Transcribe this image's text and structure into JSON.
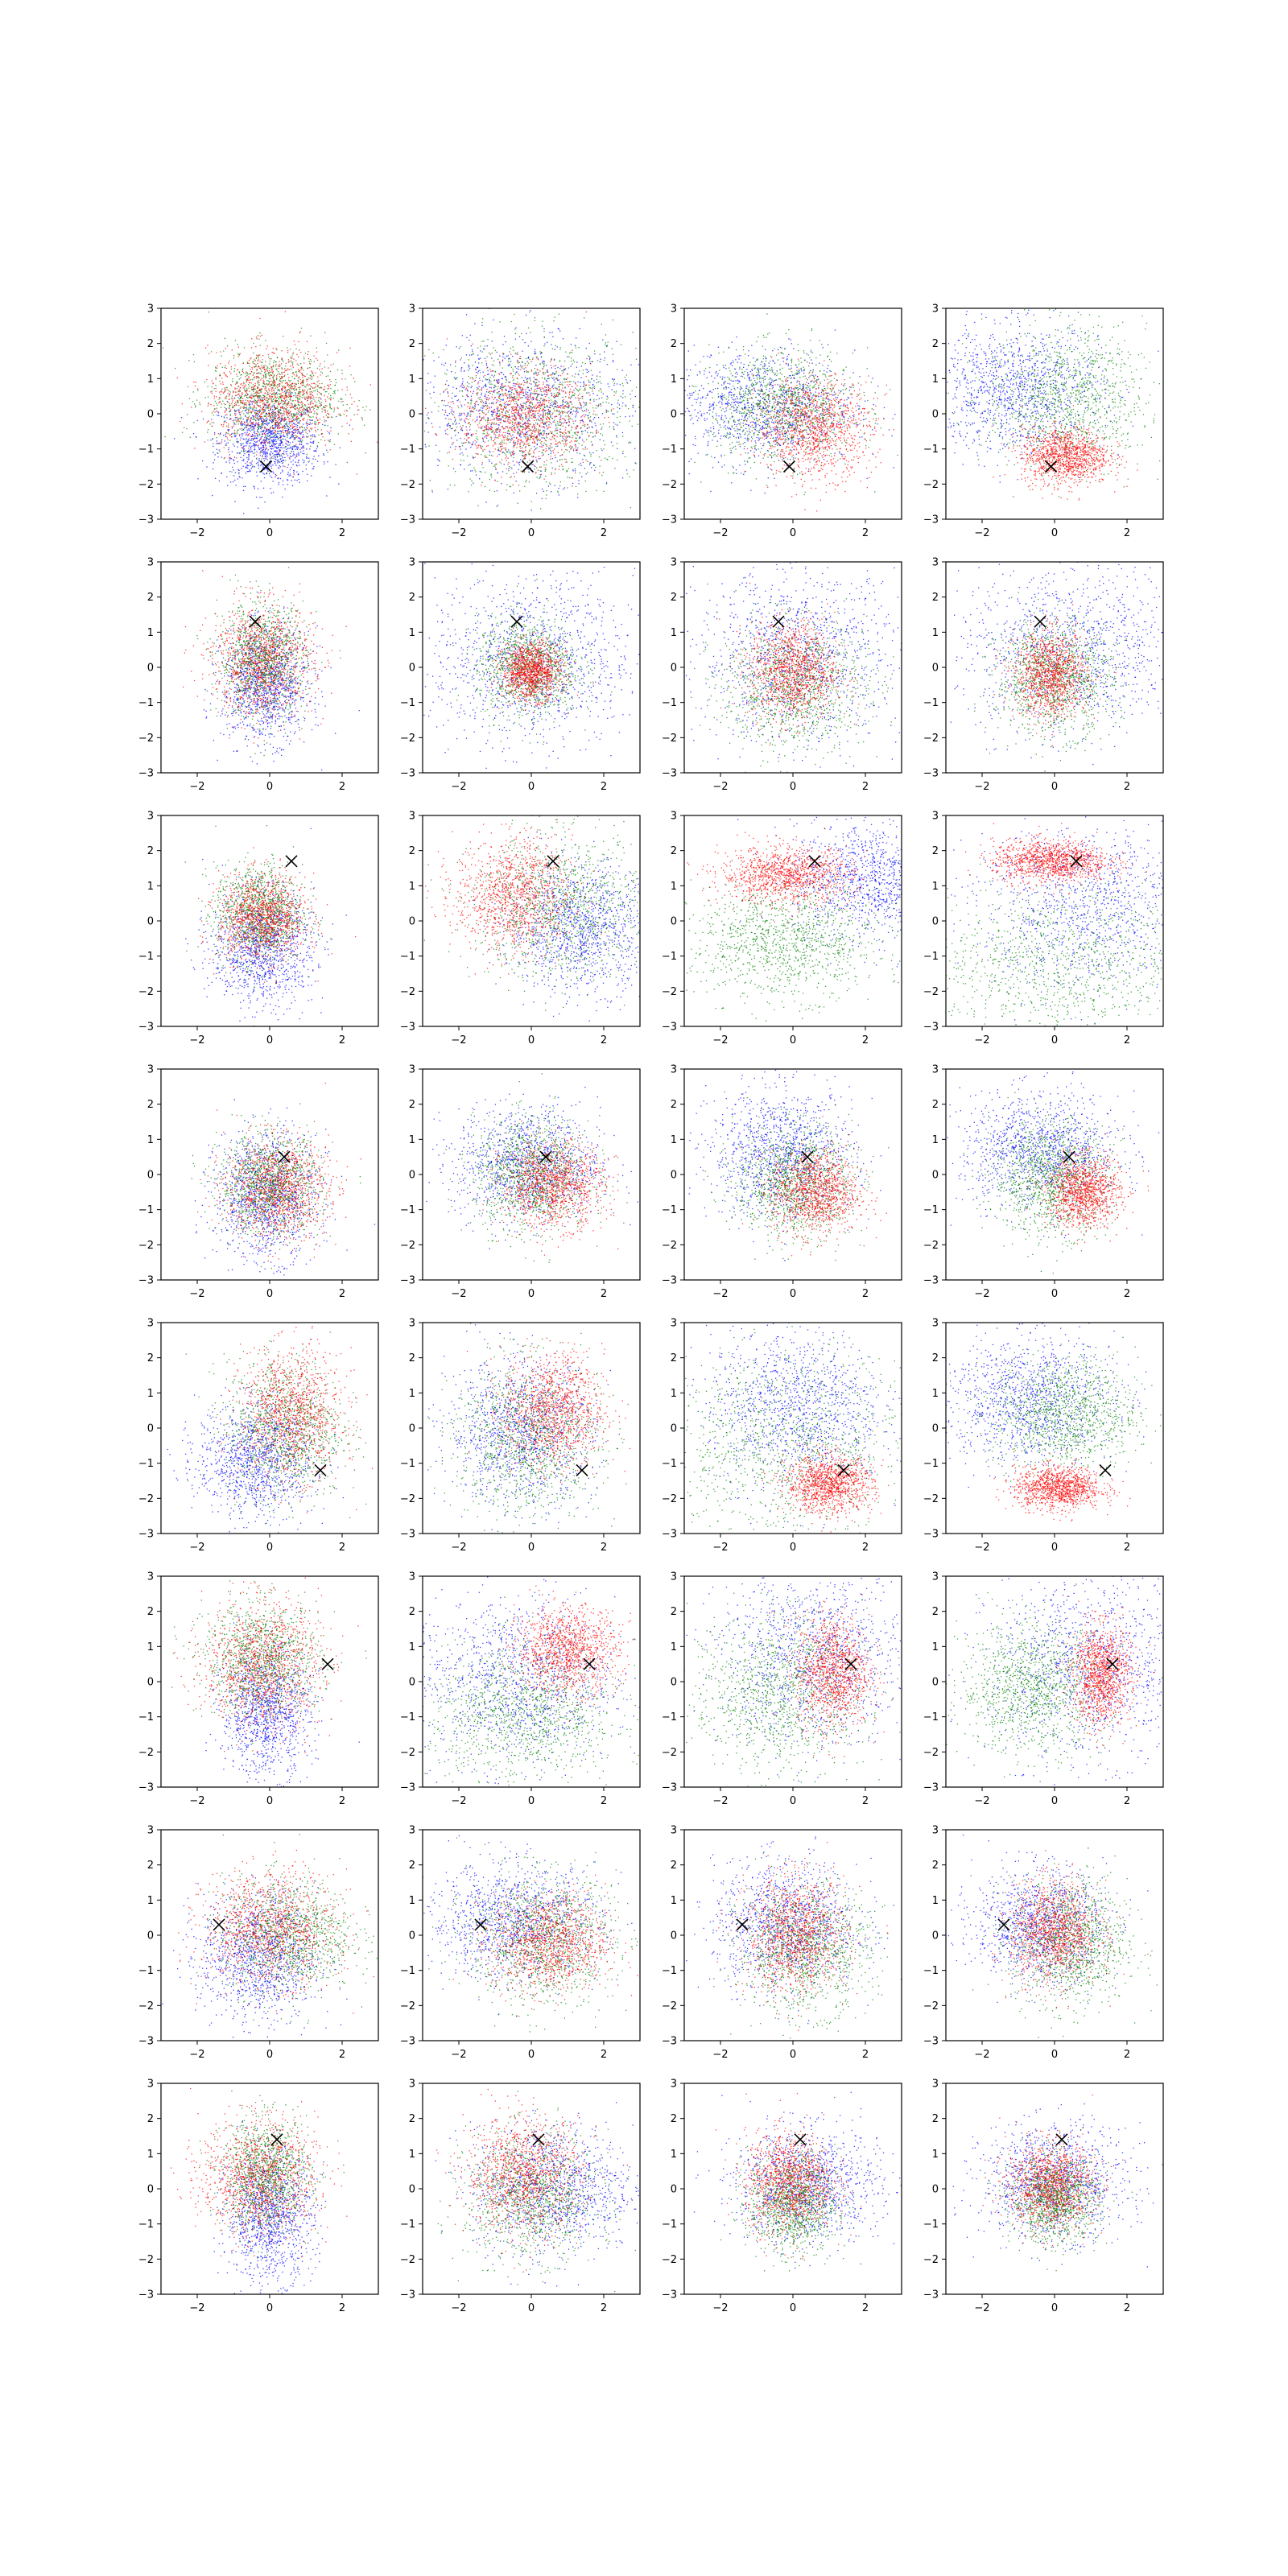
{
  "figure": {
    "rows": 8,
    "cols": 4,
    "background": "#ffffff"
  },
  "chart_data": {
    "type": "scatter",
    "title": "",
    "xlabel": "",
    "ylabel": "",
    "xlim": [
      -3,
      3
    ],
    "ylim": [
      -3,
      3
    ],
    "xticks": [
      "−2",
      "0",
      "2"
    ],
    "yticks": [
      "−3",
      "−2",
      "−1",
      "0",
      "1",
      "2",
      "3"
    ],
    "grid": false,
    "legend": "none",
    "series_colors": {
      "blue": "#0000ff",
      "green": "#008000",
      "red": "#ff0000"
    },
    "marker_color": "#000000",
    "marker_symbol": "×",
    "rows": [
      {
        "marker": [
          -0.1,
          -1.5
        ],
        "panels": [
          {
            "blue": [
              0.0,
              -0.8,
              0.7,
              0.6
            ],
            "green": [
              0.1,
              0.4,
              0.9,
              0.7
            ],
            "red": [
              0.1,
              0.4,
              0.9,
              0.7
            ]
          },
          {
            "blue": [
              -0.3,
              0.2,
              1.5,
              1.0
            ],
            "green": [
              0.2,
              0.0,
              1.4,
              1.1
            ],
            "red": [
              -0.2,
              -0.1,
              0.9,
              0.7
            ]
          },
          {
            "blue": [
              -0.9,
              0.2,
              1.3,
              0.8
            ],
            "green": [
              -0.3,
              0.2,
              1.0,
              0.8
            ],
            "red": [
              0.6,
              -0.4,
              0.8,
              0.7
            ]
          },
          {
            "blue": [
              -1.1,
              0.7,
              1.2,
              0.9
            ],
            "green": [
              0.3,
              0.4,
              1.1,
              1.0
            ],
            "red": [
              0.3,
              -1.2,
              0.6,
              0.4
            ]
          }
        ]
      },
      {
        "marker": [
          -0.4,
          1.3
        ],
        "panels": [
          {
            "blue": [
              -0.1,
              -0.5,
              0.6,
              0.8
            ],
            "green": [
              -0.2,
              0.2,
              0.6,
              0.8
            ],
            "red": [
              -0.2,
              0.2,
              0.7,
              0.8
            ]
          },
          {
            "blue": [
              0.0,
              0.2,
              1.4,
              1.2
            ],
            "green": [
              -0.1,
              0.0,
              0.7,
              0.7
            ],
            "red": [
              0.0,
              -0.1,
              0.4,
              0.4
            ]
          },
          {
            "blue": [
              0.2,
              0.3,
              1.4,
              1.2
            ],
            "green": [
              0.0,
              -0.5,
              1.0,
              0.9
            ],
            "red": [
              0.0,
              -0.1,
              0.6,
              0.7
            ]
          },
          {
            "blue": [
              0.5,
              0.5,
              1.6,
              1.2
            ],
            "green": [
              0.0,
              -0.3,
              0.8,
              0.8
            ],
            "red": [
              -0.1,
              -0.2,
              0.5,
              0.6
            ]
          }
        ]
      },
      {
        "marker": [
          0.6,
          1.7
        ],
        "panels": [
          {
            "blue": [
              -0.2,
              -0.8,
              0.7,
              0.8
            ],
            "green": [
              -0.3,
              0.2,
              0.6,
              0.7
            ],
            "red": [
              -0.2,
              0.1,
              0.6,
              0.6
            ]
          },
          {
            "blue": [
              1.4,
              -0.2,
              1.0,
              0.9
            ],
            "green": [
              0.8,
              0.4,
              1.2,
              1.0
            ],
            "red": [
              -0.5,
              0.7,
              0.8,
              0.8
            ]
          },
          {
            "blue": [
              2.2,
              1.2,
              1.1,
              0.8
            ],
            "green": [
              -0.2,
              -0.6,
              1.3,
              0.8
            ],
            "red": [
              -0.2,
              1.3,
              0.9,
              0.4
            ]
          },
          {
            "blue": [
              1.0,
              0.5,
              1.6,
              1.2
            ],
            "green": [
              0.0,
              -1.2,
              2.0,
              1.1
            ],
            "red": [
              -0.1,
              1.7,
              0.8,
              0.3
            ]
          }
        ]
      },
      {
        "marker": [
          0.4,
          0.5
        ],
        "panels": [
          {
            "blue": [
              -0.1,
              -0.6,
              0.7,
              0.9
            ],
            "green": [
              0.0,
              -0.3,
              0.7,
              0.7
            ],
            "red": [
              0.2,
              -0.4,
              0.7,
              0.7
            ]
          },
          {
            "blue": [
              -0.1,
              0.3,
              1.0,
              0.8
            ],
            "green": [
              0.0,
              0.0,
              0.8,
              0.8
            ],
            "red": [
              0.6,
              -0.3,
              0.7,
              0.6
            ]
          },
          {
            "blue": [
              -0.3,
              0.6,
              1.0,
              0.9
            ],
            "green": [
              0.0,
              -0.2,
              0.8,
              0.8
            ],
            "red": [
              0.6,
              -0.5,
              0.6,
              0.6
            ]
          },
          {
            "blue": [
              -0.4,
              0.7,
              1.1,
              0.8
            ],
            "green": [
              -0.1,
              -0.1,
              0.8,
              0.8
            ],
            "red": [
              0.8,
              -0.5,
              0.5,
              0.5
            ]
          }
        ]
      },
      {
        "marker": [
          1.4,
          -1.2
        ],
        "panels": [
          {
            "blue": [
              -0.4,
              -0.9,
              0.8,
              0.8
            ],
            "green": [
              0.4,
              0.0,
              0.8,
              1.0
            ],
            "red": [
              0.6,
              0.4,
              0.7,
              0.9
            ]
          },
          {
            "blue": [
              -0.3,
              -0.1,
              1.0,
              1.0
            ],
            "green": [
              -0.1,
              -0.3,
              1.0,
              1.1
            ],
            "red": [
              0.6,
              0.5,
              0.7,
              0.8
            ]
          },
          {
            "blue": [
              0.1,
              0.6,
              1.2,
              1.1
            ],
            "green": [
              -0.2,
              -0.5,
              1.7,
              1.3
            ],
            "red": [
              1.0,
              -1.6,
              0.6,
              0.4
            ]
          },
          {
            "blue": [
              -0.8,
              0.8,
              1.2,
              0.9
            ],
            "green": [
              0.3,
              0.4,
              1.0,
              0.8
            ],
            "red": [
              0.1,
              -1.7,
              0.6,
              0.3
            ]
          }
        ]
      },
      {
        "marker": [
          1.6,
          0.5
        ],
        "panels": [
          {
            "blue": [
              -0.1,
              -0.9,
              0.6,
              0.9
            ],
            "green": [
              -0.2,
              0.6,
              0.8,
              0.8
            ],
            "red": [
              -0.2,
              0.5,
              0.8,
              0.9
            ]
          },
          {
            "blue": [
              -0.5,
              0.0,
              1.4,
              1.2
            ],
            "green": [
              -0.2,
              -0.9,
              1.3,
              1.0
            ],
            "red": [
              1.0,
              0.9,
              0.7,
              0.6
            ]
          },
          {
            "blue": [
              0.6,
              0.7,
              1.3,
              1.2
            ],
            "green": [
              -0.4,
              -0.3,
              1.2,
              1.1
            ],
            "red": [
              1.1,
              0.3,
              0.5,
              0.8
            ]
          },
          {
            "blue": [
              1.0,
              0.4,
              1.4,
              1.3
            ],
            "green": [
              -0.6,
              -0.2,
              1.0,
              0.9
            ],
            "red": [
              1.3,
              0.2,
              0.4,
              0.7
            ]
          }
        ]
      },
      {
        "marker": [
          -1.4,
          0.3
        ],
        "panels": [
          {
            "blue": [
              -0.3,
              -0.6,
              0.8,
              0.9
            ],
            "green": [
              0.5,
              0.0,
              0.9,
              0.8
            ],
            "red": [
              0.0,
              0.2,
              0.9,
              0.8
            ]
          },
          {
            "blue": [
              -0.5,
              0.4,
              1.2,
              0.8
            ],
            "green": [
              0.3,
              -0.1,
              1.0,
              0.9
            ],
            "red": [
              0.5,
              -0.2,
              0.8,
              0.7
            ]
          },
          {
            "blue": [
              -0.2,
              0.3,
              1.0,
              0.9
            ],
            "green": [
              0.3,
              -0.4,
              0.9,
              0.9
            ],
            "red": [
              0.1,
              0.0,
              0.7,
              0.8
            ]
          },
          {
            "blue": [
              -0.4,
              0.3,
              0.9,
              0.8
            ],
            "green": [
              0.4,
              -0.2,
              0.8,
              0.9
            ],
            "red": [
              0.0,
              0.1,
              0.6,
              0.7
            ]
          }
        ]
      },
      {
        "marker": [
          0.2,
          1.4
        ],
        "panels": [
          {
            "blue": [
              0.0,
              -0.8,
              0.6,
              0.9
            ],
            "green": [
              -0.1,
              0.4,
              0.6,
              0.8
            ],
            "red": [
              -0.3,
              0.3,
              0.8,
              0.8
            ]
          },
          {
            "blue": [
              0.6,
              0.0,
              1.1,
              0.9
            ],
            "green": [
              0.0,
              -0.2,
              0.9,
              0.9
            ],
            "red": [
              -0.2,
              0.4,
              0.8,
              0.8
            ]
          },
          {
            "blue": [
              0.4,
              0.1,
              1.0,
              0.8
            ],
            "green": [
              0.0,
              -0.4,
              0.6,
              0.7
            ],
            "red": [
              -0.1,
              0.2,
              0.6,
              0.7
            ]
          },
          {
            "blue": [
              0.0,
              0.2,
              1.0,
              0.8
            ],
            "green": [
              0.0,
              -0.3,
              0.6,
              0.6
            ],
            "red": [
              -0.1,
              0.1,
              0.6,
              0.6
            ]
          }
        ]
      }
    ]
  }
}
